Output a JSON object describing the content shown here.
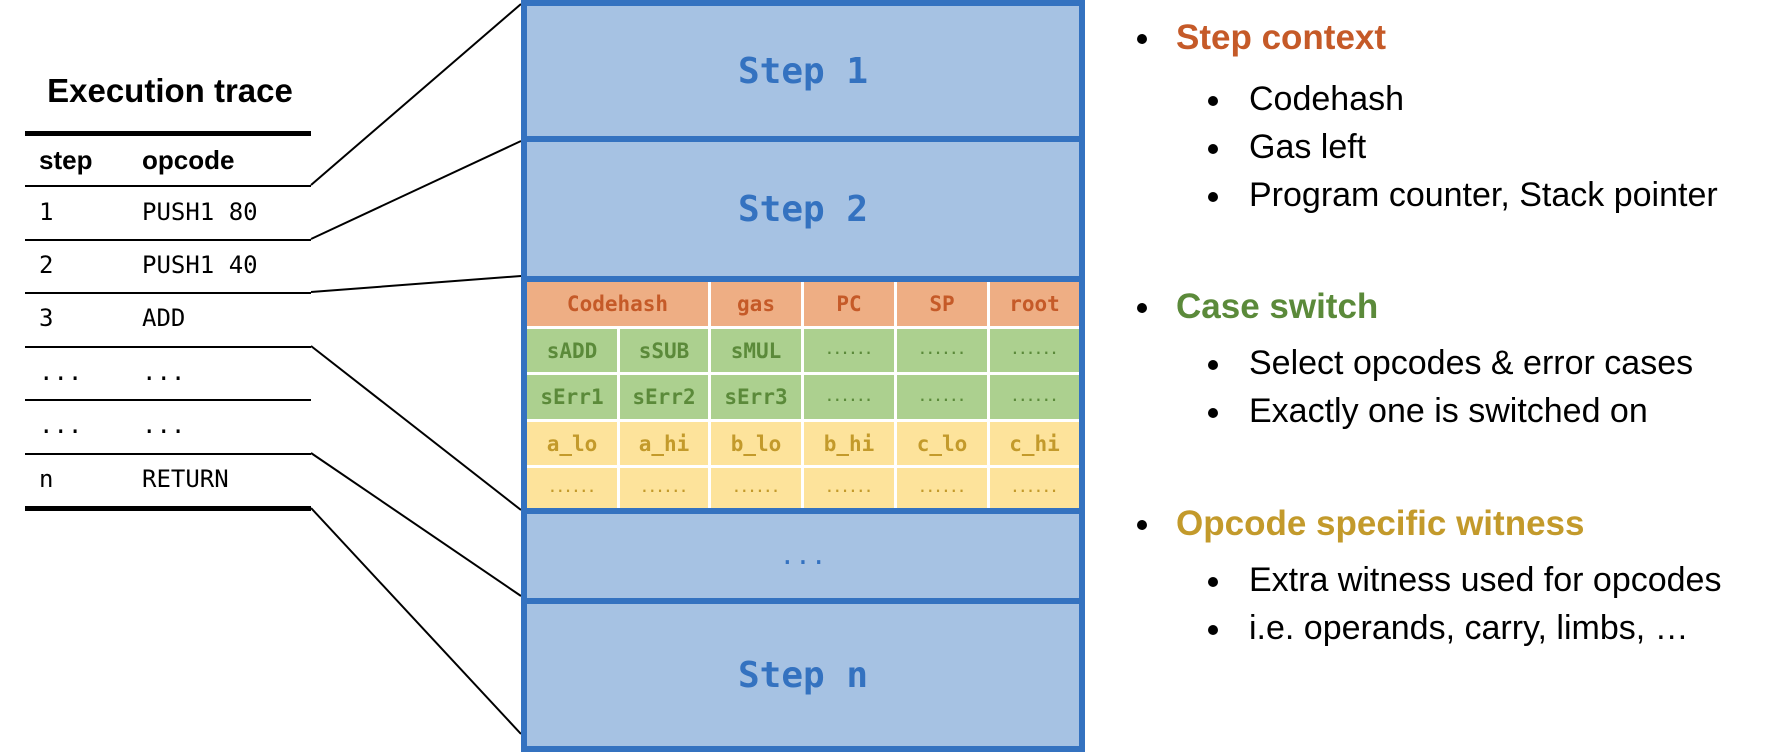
{
  "trace": {
    "title": "Execution trace",
    "headers": [
      "step",
      "opcode"
    ],
    "rows": [
      [
        "1",
        "PUSH1 80"
      ],
      [
        "2",
        "PUSH1 40"
      ],
      [
        "3",
        "ADD"
      ],
      [
        "...",
        "..."
      ],
      [
        "...",
        "..."
      ],
      [
        "n",
        "RETURN"
      ]
    ]
  },
  "steps": {
    "step1": "Step 1",
    "step2": "Step 2",
    "ellipsis": "...",
    "stepn": "Step n"
  },
  "detail_grid": {
    "context_row": [
      "Codehash",
      "gas",
      "PC",
      "SP",
      "root"
    ],
    "switch_row1": [
      "sADD",
      "sSUB",
      "sMUL",
      "......",
      "......",
      "......"
    ],
    "switch_row2": [
      "sErr1",
      "sErr2",
      "sErr3",
      "......",
      "......",
      "......"
    ],
    "witness_row1": [
      "a_lo",
      "a_hi",
      "b_lo",
      "b_hi",
      "c_lo",
      "c_hi"
    ],
    "witness_row2": [
      "......",
      "......",
      "......",
      "......",
      "......",
      "......"
    ]
  },
  "colors": {
    "context": "#c55a28",
    "context_bg": "#eeae84",
    "switch": "#5b8a3a",
    "switch_bg": "#acd08f",
    "witness": "#c39a2b",
    "witness_bg": "#fde39b",
    "step_fill": "#a6c2e3",
    "step_border": "#3472c0"
  },
  "bullets": {
    "context": {
      "heading": "Step context",
      "items": [
        "Codehash",
        "Gas left",
        "Program counter, Stack pointer"
      ]
    },
    "switch": {
      "heading": "Case switch",
      "items": [
        "Select opcodes & error cases",
        "Exactly one is switched on"
      ]
    },
    "witness": {
      "heading": "Opcode specific witness",
      "items": [
        "Extra witness used for opcodes",
        "i.e. operands, carry, limbs, …"
      ]
    }
  }
}
